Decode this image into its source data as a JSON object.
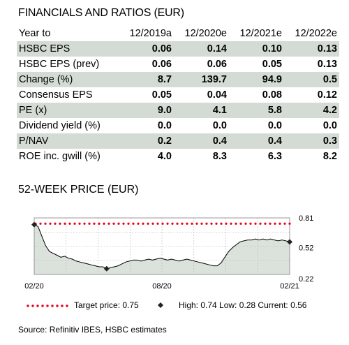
{
  "financials": {
    "title": "FINANCIALS AND RATIOS (EUR)",
    "header": [
      "Year to",
      "12/2019a",
      "12/2020e",
      "12/2021e",
      "12/2022e"
    ],
    "rows": [
      {
        "label": "HSBC EPS",
        "values": [
          "0.06",
          "0.14",
          "0.10",
          "0.13"
        ]
      },
      {
        "label": "HSBC EPS (prev)",
        "values": [
          "0.06",
          "0.06",
          "0.05",
          "0.13"
        ]
      },
      {
        "label": "Change (%)",
        "values": [
          "8.7",
          "139.7",
          "94.9",
          "0.5"
        ]
      },
      {
        "label": "Consensus EPS",
        "values": [
          "0.05",
          "0.04",
          "0.08",
          "0.12"
        ]
      },
      {
        "label": "PE (x)",
        "values": [
          "9.0",
          "4.1",
          "5.8",
          "4.2"
        ]
      },
      {
        "label": "Dividend yield (%)",
        "values": [
          "0.0",
          "0.0",
          "0.0",
          "0.0"
        ]
      },
      {
        "label": "P/NAV",
        "values": [
          "0.2",
          "0.4",
          "0.4",
          "0.3"
        ]
      },
      {
        "label": "ROE inc. gwill (%)",
        "values": [
          "4.0",
          "8.3",
          "6.3",
          "8.2"
        ]
      }
    ]
  },
  "price_section": {
    "title": "52-WEEK PRICE (EUR)",
    "legend_target": "Target price: 0.75",
    "legend_stats": "High: 0.74 Low: 0.28 Current: 0.56",
    "source": "Source: Refinitiv IBES, HSBC estimates"
  },
  "colors": {
    "shade": "#d4dbd4",
    "area": "#dbe2db",
    "target": "#e8001c",
    "line": "#000000"
  },
  "chart_data": {
    "type": "area",
    "title": "52-WEEK PRICE (EUR)",
    "x_tick_labels": [
      "02/20",
      "08/20",
      "02/21"
    ],
    "y_tick_labels": [
      "0.81",
      "0.52",
      "0.22"
    ],
    "ylim": [
      0.22,
      0.81
    ],
    "y_axis_side": "right",
    "grid": true,
    "target_price": 0.75,
    "high": 0.74,
    "low": 0.28,
    "current": 0.56,
    "series": [
      {
        "values": [
          0.74,
          0.72,
          0.62,
          0.52,
          0.46,
          0.44,
          0.42,
          0.4,
          0.41,
          0.39,
          0.38,
          0.36,
          0.35,
          0.34,
          0.33,
          0.32,
          0.31,
          0.3,
          0.3,
          0.28,
          0.29,
          0.3,
          0.31,
          0.33,
          0.35,
          0.36,
          0.37,
          0.37,
          0.36,
          0.37,
          0.38,
          0.37,
          0.38,
          0.39,
          0.38,
          0.37,
          0.38,
          0.37,
          0.36,
          0.37,
          0.38,
          0.37,
          0.36,
          0.35,
          0.34,
          0.33,
          0.32,
          0.31,
          0.31,
          0.34,
          0.4,
          0.46,
          0.5,
          0.53,
          0.56,
          0.57,
          0.58,
          0.58,
          0.59,
          0.58,
          0.59,
          0.58,
          0.59,
          0.58,
          0.57,
          0.58,
          0.57,
          0.56
        ]
      }
    ]
  }
}
